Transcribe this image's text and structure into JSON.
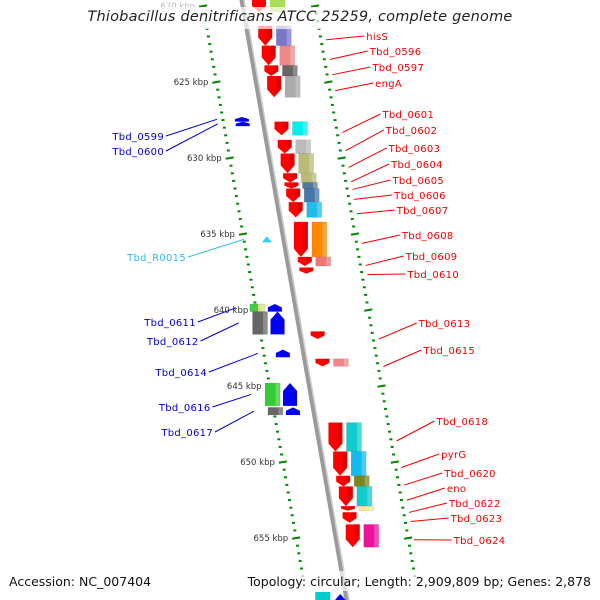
{
  "title": "Thiobacillus denitrificans ATCC 25259, complete genome",
  "footer": {
    "accession": "Accession: NC_007404",
    "summary": "Topology: circular; Length: 2,909,809 bp; Genes: 2,878"
  },
  "colors": {
    "forward_strand": "#ff0000",
    "reverse_strand": "#0000ff",
    "rna": "#33ccff",
    "backbone": "#888888",
    "tick": "#008800",
    "label_text": "#333333"
  },
  "scale": {
    "unit": "kbp",
    "visible_range_kbp": [
      620,
      657
    ],
    "major_ticks": [
      {
        "kbp": 620,
        "label": "620 kbp"
      },
      {
        "kbp": 625,
        "label": "625 kbp"
      },
      {
        "kbp": 630,
        "label": "630 kbp"
      },
      {
        "kbp": 635,
        "label": "635 kbp"
      },
      {
        "kbp": 640,
        "label": "640 kbp"
      },
      {
        "kbp": 645,
        "label": "645 kbp"
      },
      {
        "kbp": 650,
        "label": "650 kbp"
      },
      {
        "kbp": 655,
        "label": "655 kbp"
      }
    ]
  },
  "genes": [
    {
      "name": "hisS",
      "strand": "forward",
      "start_kbp": 621.3,
      "end_kbp": 622.6,
      "cog_color": "#7777cc"
    },
    {
      "name": "Tbd_0596",
      "strand": "forward",
      "start_kbp": 622.6,
      "end_kbp": 623.9,
      "cog_color": "#ee8888"
    },
    {
      "name": "Tbd_0597",
      "strand": "forward",
      "start_kbp": 623.9,
      "end_kbp": 624.6,
      "cog_color": "#666666"
    },
    {
      "name": "engA",
      "strand": "forward",
      "start_kbp": 624.6,
      "end_kbp": 626.0,
      "cog_color": "#aaaaaa"
    },
    {
      "name": "Tbd_0599",
      "strand": "reverse",
      "start_kbp": 627.3,
      "end_kbp": 627.6,
      "cog_color": null
    },
    {
      "name": "Tbd_0600",
      "strand": "reverse",
      "start_kbp": 627.6,
      "end_kbp": 627.9,
      "cog_color": null
    },
    {
      "name": "Tbd_0601",
      "strand": "forward",
      "start_kbp": 627.6,
      "end_kbp": 628.5,
      "cog_color": "#00eeee"
    },
    {
      "name": "Tbd_0602",
      "strand": "forward",
      "start_kbp": 628.8,
      "end_kbp": 629.7,
      "cog_color": "#bbbbbb"
    },
    {
      "name": "Tbd_0603",
      "strand": "forward",
      "start_kbp": 629.7,
      "end_kbp": 631.0,
      "cog_color": "#bbbb77"
    },
    {
      "name": "Tbd_0604",
      "strand": "forward",
      "start_kbp": 631.0,
      "end_kbp": 631.6,
      "cog_color": "#bbbb77"
    },
    {
      "name": "Tbd_0605",
      "strand": "forward",
      "start_kbp": 631.6,
      "end_kbp": 632.0,
      "cog_color": "#557799"
    },
    {
      "name": "Tbd_0606",
      "strand": "forward",
      "start_kbp": 632.0,
      "end_kbp": 632.9,
      "cog_color": "#4477aa"
    },
    {
      "name": "Tbd_0607",
      "strand": "forward",
      "start_kbp": 632.9,
      "end_kbp": 633.9,
      "cog_color": "#22bbee"
    },
    {
      "name": "Tbd_R0015",
      "strand": "rna",
      "start_kbp": 635.3,
      "end_kbp": 635.4,
      "cog_color": null
    },
    {
      "name": "Tbd_0608",
      "strand": "forward",
      "start_kbp": 634.2,
      "end_kbp": 636.5,
      "cog_color": "#ff8800"
    },
    {
      "name": "Tbd_0609",
      "strand": "forward",
      "start_kbp": 636.5,
      "end_kbp": 637.1,
      "cog_color": "#ee7777"
    },
    {
      "name": "Tbd_0610",
      "strand": "forward",
      "start_kbp": 637.2,
      "end_kbp": 637.6,
      "cog_color": null
    },
    {
      "name": "Tbd_0611",
      "strand": "reverse",
      "start_kbp": 639.6,
      "end_kbp": 640.1,
      "cog_color": "#44cc44",
      "cog_color2": "#dddd88"
    },
    {
      "name": "Tbd_0612",
      "strand": "reverse",
      "start_kbp": 640.1,
      "end_kbp": 641.6,
      "cog_color": "#666666"
    },
    {
      "name": "Tbd_0613",
      "strand": "forward",
      "start_kbp": 641.4,
      "end_kbp": 641.9,
      "cog_color": null
    },
    {
      "name": "Tbd_0614",
      "strand": "reverse",
      "start_kbp": 642.6,
      "end_kbp": 643.1,
      "cog_color": null
    },
    {
      "name": "Tbd_0615",
      "strand": "forward",
      "start_kbp": 643.2,
      "end_kbp": 643.7,
      "cog_color": "#ee8888"
    },
    {
      "name": "Tbd_0616",
      "strand": "reverse",
      "start_kbp": 644.8,
      "end_kbp": 646.3,
      "cog_color": "#33cc33"
    },
    {
      "name": "Tbd_0617",
      "strand": "reverse",
      "start_kbp": 646.4,
      "end_kbp": 646.9,
      "cog_color": "#666666"
    },
    {
      "name": "Tbd_0618",
      "strand": "forward",
      "start_kbp": 647.4,
      "end_kbp": 649.3,
      "cog_color": "#11cccc"
    },
    {
      "name": "pyrG",
      "strand": "forward",
      "start_kbp": 649.3,
      "end_kbp": 650.9,
      "cog_color": "#11bbee"
    },
    {
      "name": "Tbd_0620",
      "strand": "forward",
      "start_kbp": 650.9,
      "end_kbp": 651.6,
      "cog_color": "#778822"
    },
    {
      "name": "eno",
      "strand": "forward",
      "start_kbp": 651.6,
      "end_kbp": 652.9,
      "cog_color": "#11cccc"
    },
    {
      "name": "Tbd_0622",
      "strand": "forward",
      "start_kbp": 652.9,
      "end_kbp": 653.2,
      "cog_color": "#eeee99"
    },
    {
      "name": "Tbd_0623",
      "strand": "forward",
      "start_kbp": 653.3,
      "end_kbp": 654.0,
      "cog_color": null
    },
    {
      "name": "Tbd_0624",
      "strand": "forward",
      "start_kbp": 654.1,
      "end_kbp": 655.6,
      "cog_color": "#ee1199"
    }
  ]
}
